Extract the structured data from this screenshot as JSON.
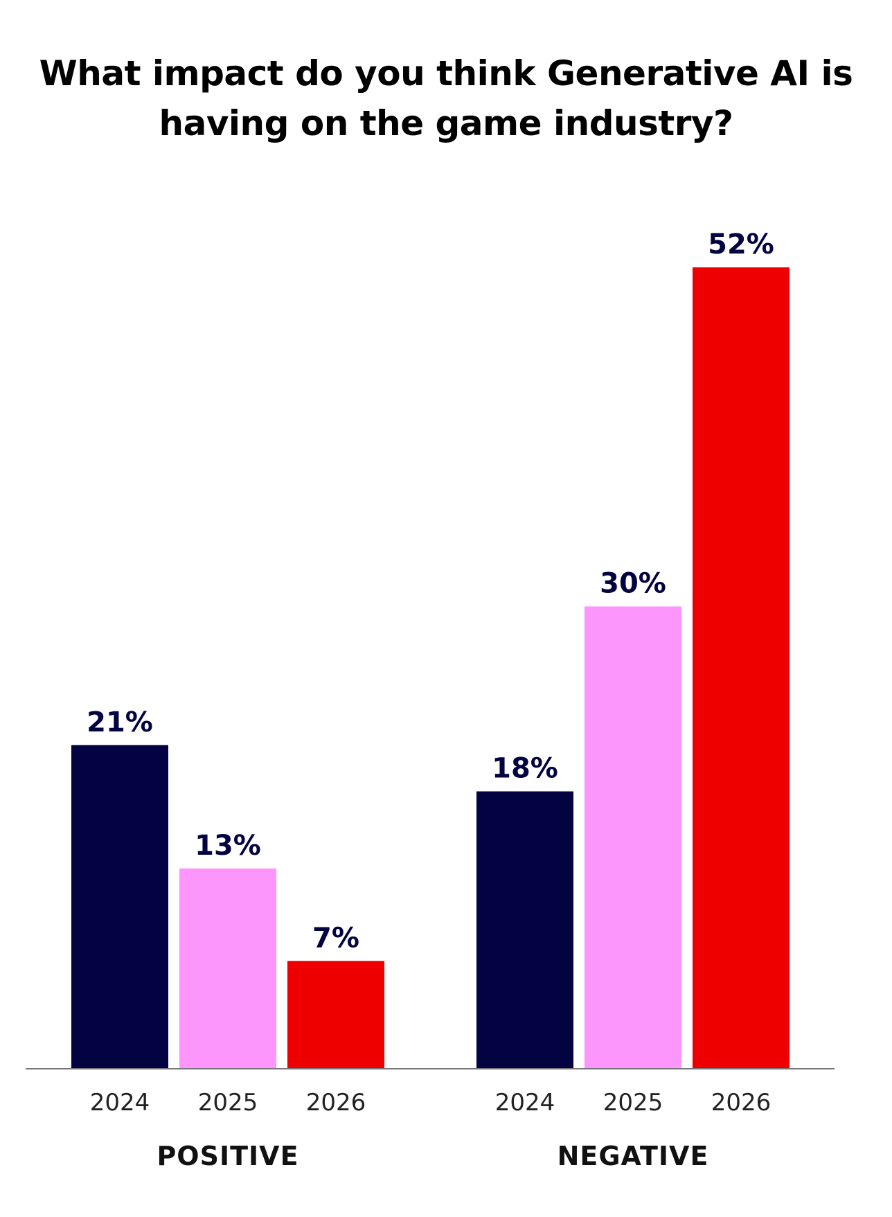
{
  "chart_data": {
    "type": "bar",
    "title_lines": [
      "What impact do you think Generative AI is",
      "having on the game industry?"
    ],
    "title": "What impact do you think Generative AI is having on the game industry?",
    "groups": [
      {
        "name": "POSITIVE",
        "categories": [
          "2024",
          "2025",
          "2026"
        ],
        "values": [
          21,
          13,
          7
        ],
        "labels": [
          "21%",
          "13%",
          "7%"
        ]
      },
      {
        "name": "NEGATIVE",
        "categories": [
          "2024",
          "2025",
          "2026"
        ],
        "values": [
          18,
          30,
          52
        ],
        "labels": [
          "18%",
          "30%",
          "52%"
        ]
      }
    ],
    "year_colors": {
      "2024": "#020340",
      "2025": "#FC95FC",
      "2026": "#EE0000"
    },
    "label_color": "#020340",
    "axis_color": "#777777",
    "ylim": [
      0,
      52
    ],
    "grid": false,
    "legend": "none"
  }
}
